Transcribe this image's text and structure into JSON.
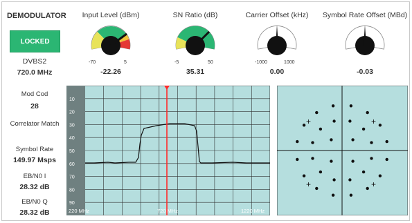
{
  "panel": {
    "title": "DEMODULATOR",
    "status": "LOCKED",
    "standard": "DVBS2",
    "frequency": "720.0 MHz"
  },
  "gauges": [
    {
      "title": "Input Level (dBm)",
      "value": "-22.26",
      "scale_min": "-70",
      "scale_max": "5"
    },
    {
      "title": "SN Ratio (dB)",
      "value": "35.31",
      "scale_min": "-5",
      "scale_max": "50"
    },
    {
      "title": "Carrier Offset (kHz)",
      "value": "0.00",
      "scale_min": "-1000",
      "scale_max": "1000"
    },
    {
      "title": "Symbol Rate Offset (MBd)",
      "value": "-0.03",
      "scale_min": "",
      "scale_max": ""
    }
  ],
  "stats": {
    "modcod_label": "Mod Cod",
    "modcod_value": "28",
    "correlator_label": "Correlator Match",
    "symbol_rate_label": "Symbol Rate",
    "symbol_rate_value": "149.97 Msps",
    "ebn0_i_label": "EB/N0 I",
    "ebn0_i_value": "28.32 dB",
    "ebn0_q_label": "EB/N0 Q",
    "ebn0_q_value": "28.32 dB"
  },
  "spectrum": {
    "y_ticks": [
      "10",
      "20",
      "30",
      "40",
      "50",
      "60",
      "70",
      "80",
      "90"
    ],
    "x_labels": [
      "220 MHz",
      "720 MHz",
      "1220 MHz"
    ],
    "colors": {
      "background": "#b5dede",
      "sidebar": "#6f8080",
      "marker": "#ff2a2a",
      "trace": "#111111"
    }
  },
  "constellation": {
    "colors": {
      "background": "#b5dede",
      "points": "#111111"
    }
  }
}
